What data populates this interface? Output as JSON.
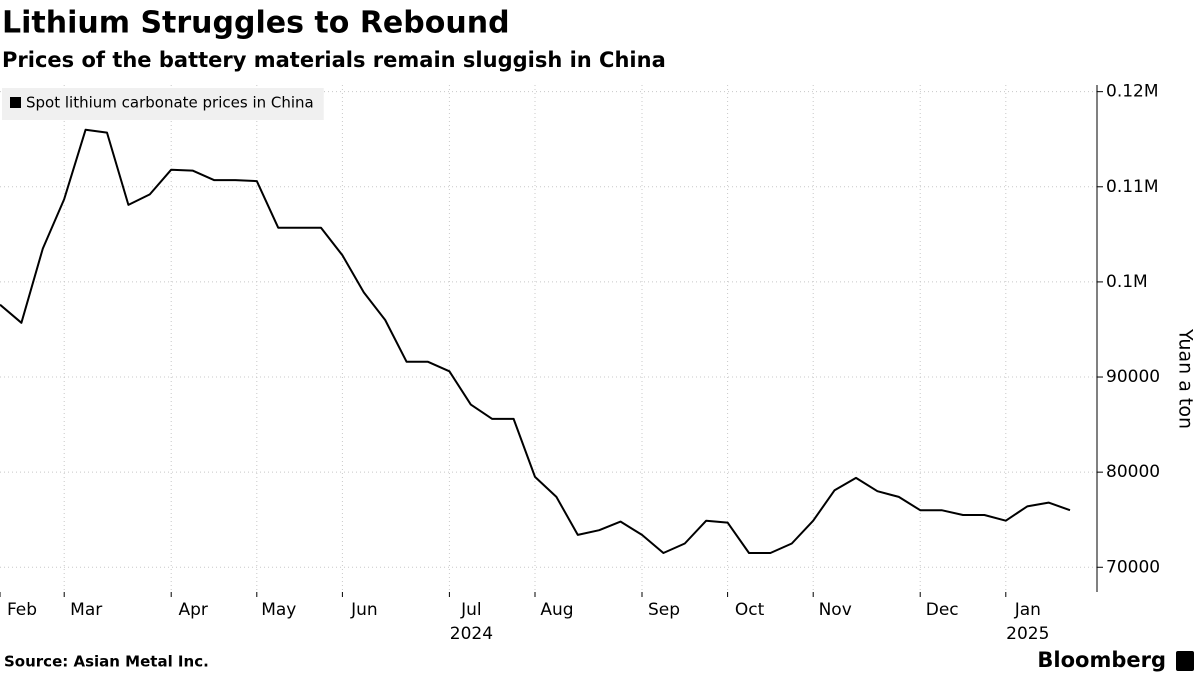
{
  "chart_data": {
    "type": "line",
    "title": "Lithium Struggles to Rebound",
    "subtitle": "Prices of the battery materials remain sluggish in China",
    "source": "Source: Asian Metal Inc.",
    "brand": "Bloomberg",
    "y_axis_label": "Yuan a ton",
    "grid": true,
    "legend": "top-left",
    "categories": [
      "Feb",
      null,
      null,
      "Mar",
      null,
      null,
      null,
      null,
      "Apr",
      null,
      null,
      null,
      "May",
      null,
      null,
      null,
      "Jun",
      null,
      null,
      null,
      null,
      "Jul",
      null,
      null,
      null,
      "Aug",
      null,
      null,
      null,
      null,
      "Sep",
      null,
      null,
      null,
      "Oct",
      null,
      null,
      null,
      "Nov",
      null,
      null,
      null,
      null,
      "Dec",
      null,
      null,
      null,
      "Jan",
      null,
      null,
      null
    ],
    "year_labels": [
      {
        "label": "2024",
        "under": "Jul"
      },
      {
        "label": "2025",
        "under": "Jan"
      }
    ],
    "series": [
      {
        "name": "Spot lithium carbonate prices in China",
        "color": "#000000",
        "values": [
          97600,
          95700,
          103500,
          108700,
          116000,
          115700,
          108100,
          109200,
          111800,
          111700,
          110700,
          110700,
          110600,
          105700,
          105700,
          105700,
          102800,
          98900,
          96000,
          91600,
          91600,
          90600,
          87100,
          85600,
          85600,
          79500,
          77400,
          73400,
          73900,
          74800,
          73400,
          71500,
          72500,
          74900,
          74700,
          71500,
          71500,
          72500,
          74900,
          78100,
          79400,
          78000,
          77400,
          76000,
          76000,
          75500,
          75500,
          74900,
          76400,
          76800,
          76000
        ]
      }
    ],
    "ylim": [
      67400,
      120700
    ],
    "yticks": [
      70000,
      80000,
      90000,
      {
        "value": 100000,
        "label": "0.1M"
      },
      {
        "value": 110000,
        "label": "0.11M"
      },
      {
        "value": 120000,
        "label": "0.12M"
      }
    ]
  }
}
